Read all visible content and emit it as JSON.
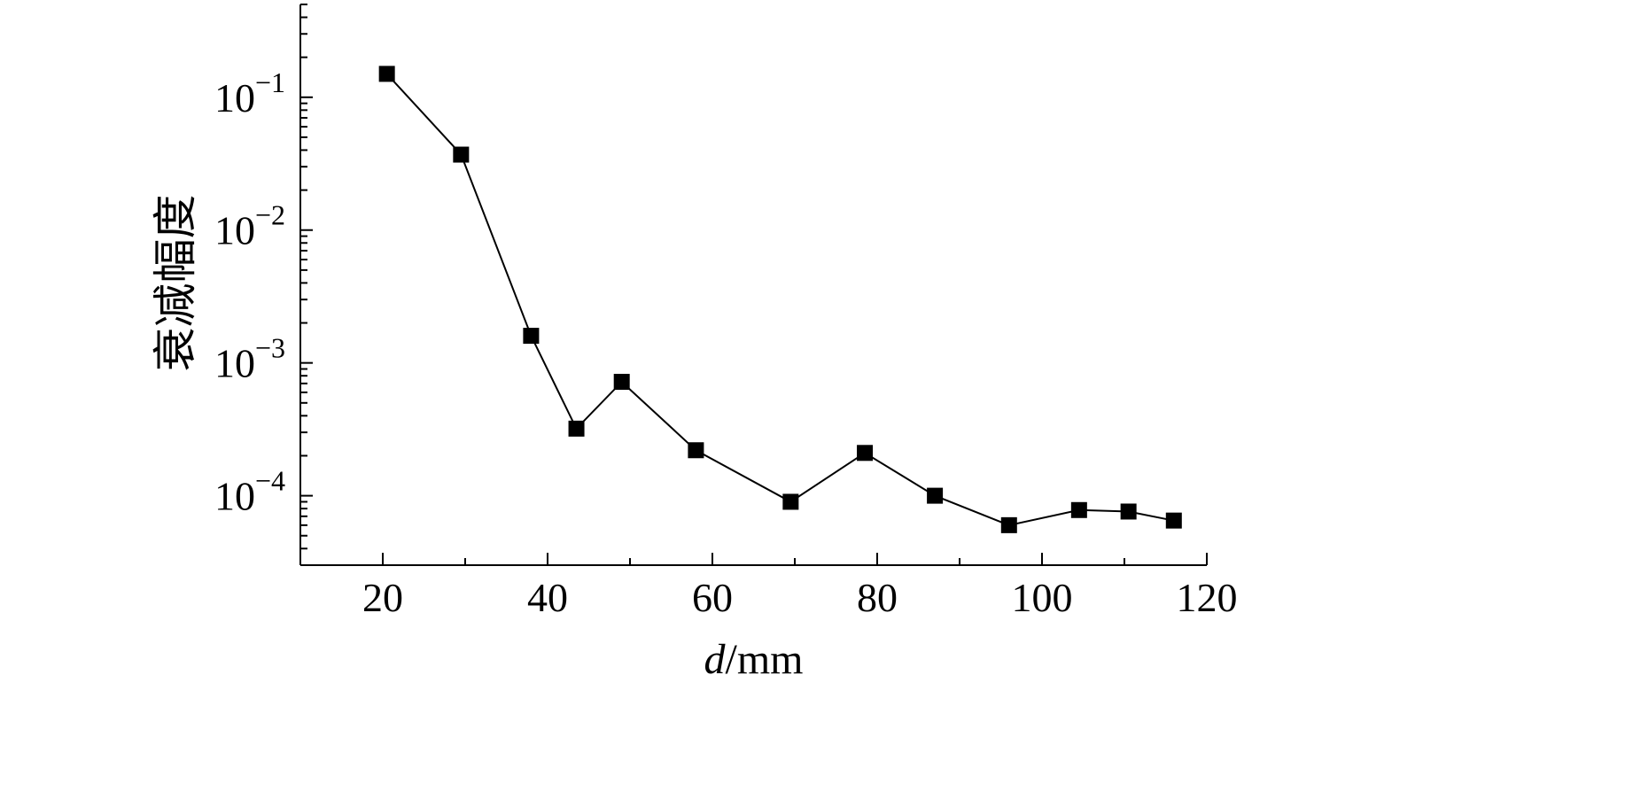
{
  "chart_data": {
    "type": "line",
    "title": "",
    "xlabel": {
      "italic": "d",
      "rest": "/mm"
    },
    "ylabel": "衰减幅度",
    "xlim": [
      10,
      120
    ],
    "ylim": [
      3e-05,
      0.5
    ],
    "yscale": "log",
    "grid": false,
    "marker": "square",
    "line_color": "#000000",
    "x_ticks": [
      {
        "value": 20,
        "label": "20"
      },
      {
        "value": 40,
        "label": "40"
      },
      {
        "value": 60,
        "label": "60"
      },
      {
        "value": 80,
        "label": "80"
      },
      {
        "value": 100,
        "label": "100"
      },
      {
        "value": 120,
        "label": "120"
      }
    ],
    "y_ticks": [
      {
        "value": 0.1,
        "base": "10",
        "exp": "−1"
      },
      {
        "value": 0.01,
        "base": "10",
        "exp": "−2"
      },
      {
        "value": 0.001,
        "base": "10",
        "exp": "−3"
      },
      {
        "value": 0.0001,
        "base": "10",
        "exp": "−4"
      }
    ],
    "series": [
      {
        "x": [
          20.5,
          29.5,
          38,
          43.5,
          49,
          58,
          69.5,
          78.5,
          87,
          96,
          104.5,
          110.5,
          116
        ],
        "y": [
          0.15,
          0.037,
          0.0016,
          0.00032,
          0.00072,
          0.00022,
          9e-05,
          0.00021,
          0.0001,
          6e-05,
          7.8e-05,
          7.6e-05,
          6.5e-05
        ]
      }
    ]
  }
}
